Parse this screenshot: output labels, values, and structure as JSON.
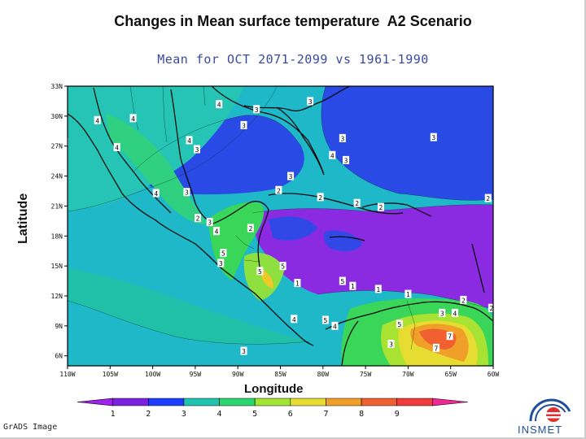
{
  "title": "Changes in Mean surface temperature  A2 Scenario",
  "subtitle": "Mean for OCT 2071-2099 vs 1961-1990",
  "axis": {
    "ylabel": "Latitude",
    "xlabel": "Longitude",
    "lat_ticks": [
      "33N",
      "30N",
      "27N",
      "24N",
      "21N",
      "18N",
      "15N",
      "12N",
      "9N",
      "6N"
    ],
    "lon_ticks": [
      "110W",
      "105W",
      "100W",
      "95W",
      "90W",
      "85W",
      "80W",
      "75W",
      "70W",
      "65W",
      "60W"
    ]
  },
  "colorbar": {
    "labels": [
      "1",
      "2",
      "3",
      "4",
      "5",
      "6",
      "7",
      "8",
      "9"
    ],
    "colors": [
      "#a020f0",
      "#7b22e0",
      "#1e3cff",
      "#1fc3b0",
      "#2ad66e",
      "#a0e632",
      "#e6dc32",
      "#f0a028",
      "#f06030",
      "#f03c3c",
      "#f02896"
    ]
  },
  "contour_labels": [
    {
      "t": "4",
      "lon": -92.2,
      "lat": 31.2
    },
    {
      "t": "3",
      "lon": -87.8,
      "lat": 30.7
    },
    {
      "t": "3",
      "lon": -81.5,
      "lat": 31.5
    },
    {
      "t": "4",
      "lon": -106.5,
      "lat": 29.6
    },
    {
      "t": "4",
      "lon": -102.3,
      "lat": 29.8
    },
    {
      "t": "3",
      "lon": -89.3,
      "lat": 29.1
    },
    {
      "t": "4",
      "lon": -110.3,
      "lat": 27.4
    },
    {
      "t": "4",
      "lon": -104.2,
      "lat": 26.9
    },
    {
      "t": "4",
      "lon": -95.7,
      "lat": 27.6
    },
    {
      "t": "3",
      "lon": -94.8,
      "lat": 26.7
    },
    {
      "t": "3",
      "lon": -77.7,
      "lat": 27.8
    },
    {
      "t": "3",
      "lon": -67.0,
      "lat": 27.9
    },
    {
      "t": "4",
      "lon": -78.9,
      "lat": 26.1
    },
    {
      "t": "3",
      "lon": -77.3,
      "lat": 25.6
    },
    {
      "t": "3",
      "lon": -83.8,
      "lat": 24.0
    },
    {
      "t": "2",
      "lon": -85.2,
      "lat": 22.6
    },
    {
      "t": "4",
      "lon": -99.6,
      "lat": 22.3
    },
    {
      "t": "3",
      "lon": -96.0,
      "lat": 22.4
    },
    {
      "t": "2",
      "lon": -80.3,
      "lat": 21.9
    },
    {
      "t": "2",
      "lon": -76.0,
      "lat": 21.3
    },
    {
      "t": "2",
      "lon": -73.2,
      "lat": 20.9
    },
    {
      "t": "2",
      "lon": -60.6,
      "lat": 21.8
    },
    {
      "t": "2",
      "lon": -94.7,
      "lat": 19.8
    },
    {
      "t": "3",
      "lon": -93.3,
      "lat": 19.4
    },
    {
      "t": "4",
      "lon": -92.5,
      "lat": 18.5
    },
    {
      "t": "2",
      "lon": -88.5,
      "lat": 18.8
    },
    {
      "t": "5",
      "lon": -91.7,
      "lat": 16.3
    },
    {
      "t": "3",
      "lon": -92.0,
      "lat": 15.3
    },
    {
      "t": "5",
      "lon": -87.4,
      "lat": 14.5
    },
    {
      "t": "5",
      "lon": -84.7,
      "lat": 15.0
    },
    {
      "t": "1",
      "lon": -83.0,
      "lat": 13.3
    },
    {
      "t": "1",
      "lon": -76.5,
      "lat": 13.0
    },
    {
      "t": "1",
      "lon": -73.5,
      "lat": 12.7
    },
    {
      "t": "5",
      "lon": -77.7,
      "lat": 13.5
    },
    {
      "t": "1",
      "lon": -70.0,
      "lat": 12.2
    },
    {
      "t": "2",
      "lon": -63.5,
      "lat": 11.6
    },
    {
      "t": "2",
      "lon": -60.2,
      "lat": 10.8
    },
    {
      "t": "3",
      "lon": -66.0,
      "lat": 10.3
    },
    {
      "t": "4",
      "lon": -64.5,
      "lat": 10.3
    },
    {
      "t": "4",
      "lon": -83.4,
      "lat": 9.7
    },
    {
      "t": "5",
      "lon": -79.7,
      "lat": 9.6
    },
    {
      "t": "4",
      "lon": -78.6,
      "lat": 9.0
    },
    {
      "t": "5",
      "lon": -71.0,
      "lat": 9.2
    },
    {
      "t": "7",
      "lon": -65.1,
      "lat": 8.0
    },
    {
      "t": "7",
      "lon": -66.7,
      "lat": 6.8
    },
    {
      "t": "3",
      "lon": -72.0,
      "lat": 7.2
    },
    {
      "t": "3",
      "lon": -89.3,
      "lat": 6.5
    }
  ]
}
